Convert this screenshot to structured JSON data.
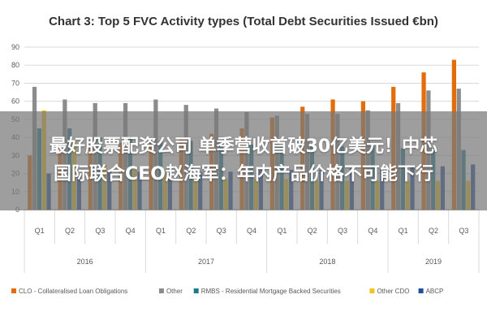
{
  "overlay": {
    "line1": "最好股票配资公司 单季营收首破30亿美元！中芯",
    "line2": "国际联合CEO赵海军：年内产品价格不可能下行"
  },
  "chart_data": {
    "type": "bar",
    "title": "Chart 3: Top 5 FVC Activity types (Total Debt Securities Issued €bn)",
    "xlabel": "",
    "ylabel": "",
    "ylim": [
      0,
      90
    ],
    "yticks": [
      0,
      10,
      20,
      30,
      40,
      50,
      60,
      70,
      80,
      90
    ],
    "grid": true,
    "legend_position": "bottom",
    "categories": [
      "Q1",
      "Q2",
      "Q3",
      "Q4",
      "Q1",
      "Q2",
      "Q3",
      "Q4",
      "Q1",
      "Q2",
      "Q3",
      "Q4",
      "Q1",
      "Q2",
      "Q3"
    ],
    "year_groups": [
      {
        "label": "2016",
        "span": 4
      },
      {
        "label": "2017",
        "span": 4
      },
      {
        "label": "2018",
        "span": 4
      },
      {
        "label": "2019",
        "span": 3
      }
    ],
    "series": [
      {
        "name": "CLO - Collateralised Loan Obligations",
        "color": "#e46c0a",
        "values": [
          30,
          32,
          35,
          37,
          38,
          40,
          42,
          45,
          51,
          57,
          61,
          60,
          68,
          76,
          83
        ]
      },
      {
        "name": "Other",
        "color": "#8c8c8c",
        "values": [
          68,
          61,
          59,
          59,
          61,
          58,
          56,
          54,
          52,
          53,
          53,
          55,
          59,
          66,
          67
        ]
      },
      {
        "name": "RMBS - Residential Mortgage Backed Securities",
        "color": "#1f7a8c",
        "values": [
          45,
          45,
          40,
          39,
          38,
          38,
          37,
          36,
          36,
          35,
          35,
          35,
          34,
          34,
          33
        ]
      },
      {
        "name": "Other CDO",
        "color": "#f0c419",
        "values": [
          55,
          38,
          25,
          22,
          20,
          18,
          17,
          17,
          17,
          16,
          16,
          16,
          16,
          16,
          16
        ]
      },
      {
        "name": "ABCP",
        "color": "#1f4e9c",
        "values": [
          20,
          20,
          21,
          21,
          21,
          21,
          21,
          22,
          22,
          22,
          23,
          23,
          24,
          24,
          25
        ]
      }
    ]
  }
}
